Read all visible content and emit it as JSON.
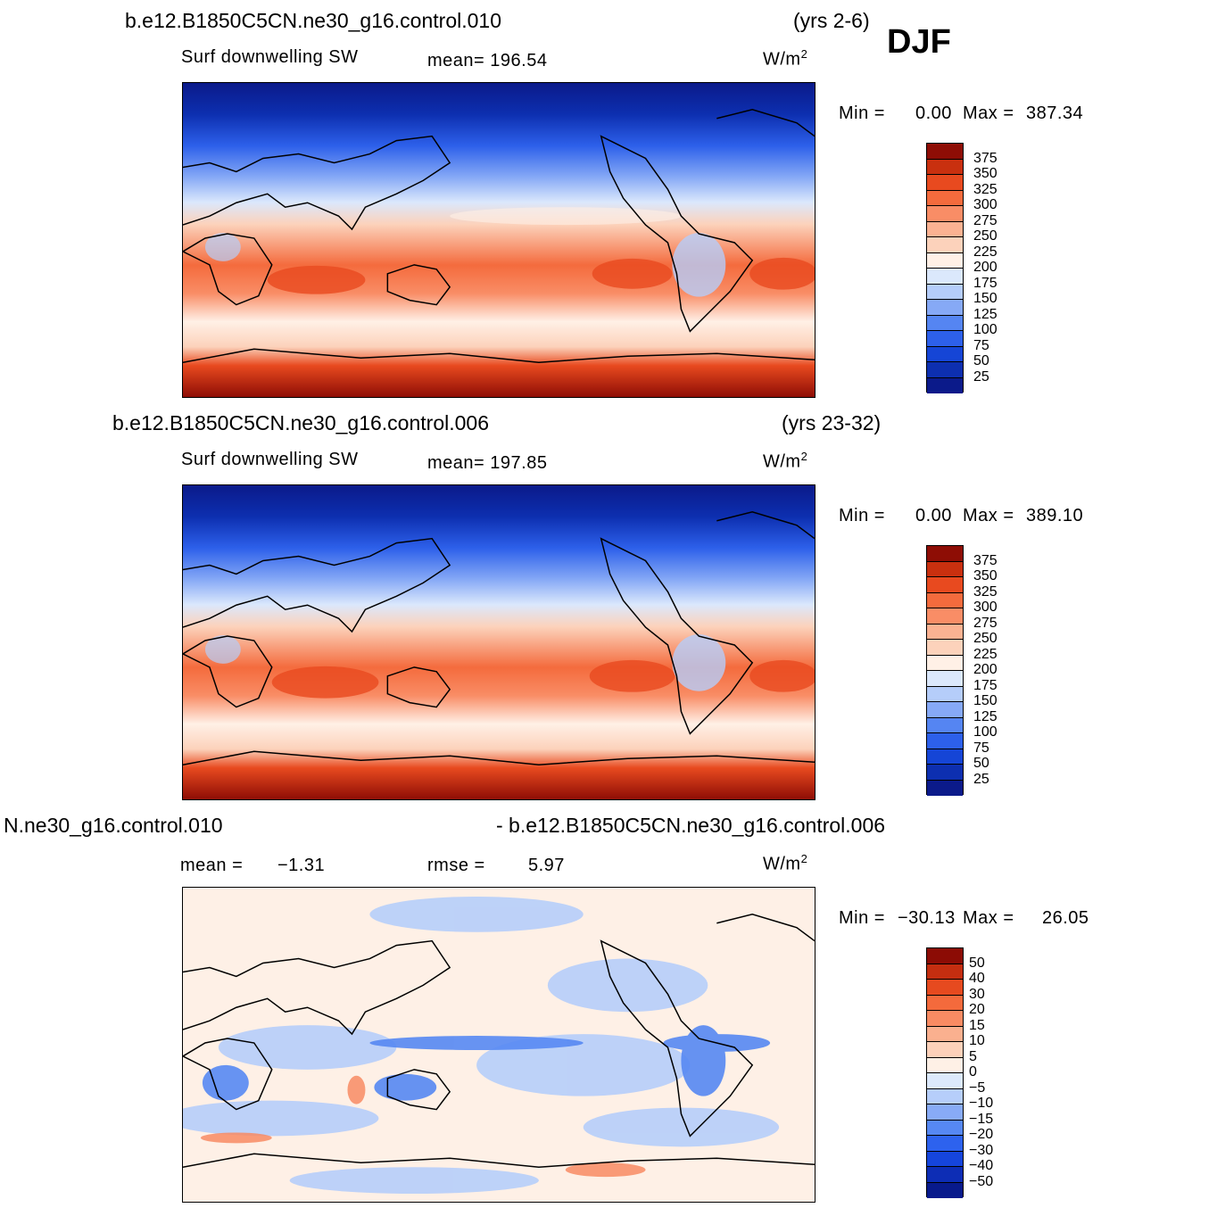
{
  "season": "DJF",
  "colors": {
    "abs_scale": [
      "#0b1a8a",
      "#0d2fb0",
      "#1545d6",
      "#2d60ea",
      "#5585f2",
      "#86a9f6",
      "#b5cdfa",
      "#dbe8fc",
      "#fff0e6",
      "#fcd2bb",
      "#fbb292",
      "#f98d66",
      "#f46b3d",
      "#e84a1f",
      "#c9300f",
      "#8e0d05"
    ],
    "diff_scale": [
      "#081a8c",
      "#0d2db5",
      "#1545dc",
      "#2d62ee",
      "#5688f3",
      "#88abf6",
      "#b6cefa",
      "#dce9fc",
      "#fef0e6",
      "#fcd1ba",
      "#fab08f",
      "#f88b63",
      "#f46a3c",
      "#e64a1f",
      "#c42e10",
      "#8c0c05"
    ]
  },
  "panels": [
    {
      "case": "b.e12.B1850C5CN.ne30_g16.control.010",
      "years": "(yrs 2-6)",
      "variable": "Surf  downwelling SW",
      "stat": "mean=  196.54",
      "units": "W/m",
      "units_sup": "2",
      "min_label": "Min  =",
      "min_value": "0.00",
      "max_label": "Max  =",
      "max_value": "387.34",
      "legend_labels": [
        "375",
        "350",
        "325",
        "300",
        "275",
        "250",
        "225",
        "200",
        "175",
        "150",
        "125",
        "100",
        "75",
        "50",
        "25"
      ]
    },
    {
      "case": "b.e12.B1850C5CN.ne30_g16.control.006",
      "years": "(yrs 23-32)",
      "variable": "Surf  downwelling SW",
      "stat": "mean=  197.85",
      "units": "W/m",
      "units_sup": "2",
      "min_label": "Min  =",
      "min_value": "0.00",
      "max_label": "Max  =",
      "max_value": "389.10",
      "legend_labels": [
        "375",
        "350",
        "325",
        "300",
        "275",
        "250",
        "225",
        "200",
        "175",
        "150",
        "125",
        "100",
        "75",
        "50",
        "25"
      ]
    },
    {
      "case_left": "N.ne30_g16.control.010",
      "case_right": "- b.e12.B1850C5CN.ne30_g16.control.006",
      "mean_label": "mean  =",
      "mean_value": "−1.31",
      "rmse_label": "rmse  =",
      "rmse_value": "5.97",
      "units": "W/m",
      "units_sup": "2",
      "min_label": "Min  =",
      "min_value": "−30.13",
      "max_label": "Max  =",
      "max_value": "26.05",
      "legend_labels": [
        "50",
        "40",
        "30",
        "20",
        "15",
        "10",
        "5",
        "0",
        "−5",
        "−10",
        "−15",
        "−20",
        "−30",
        "−40",
        "−50"
      ]
    }
  ]
}
